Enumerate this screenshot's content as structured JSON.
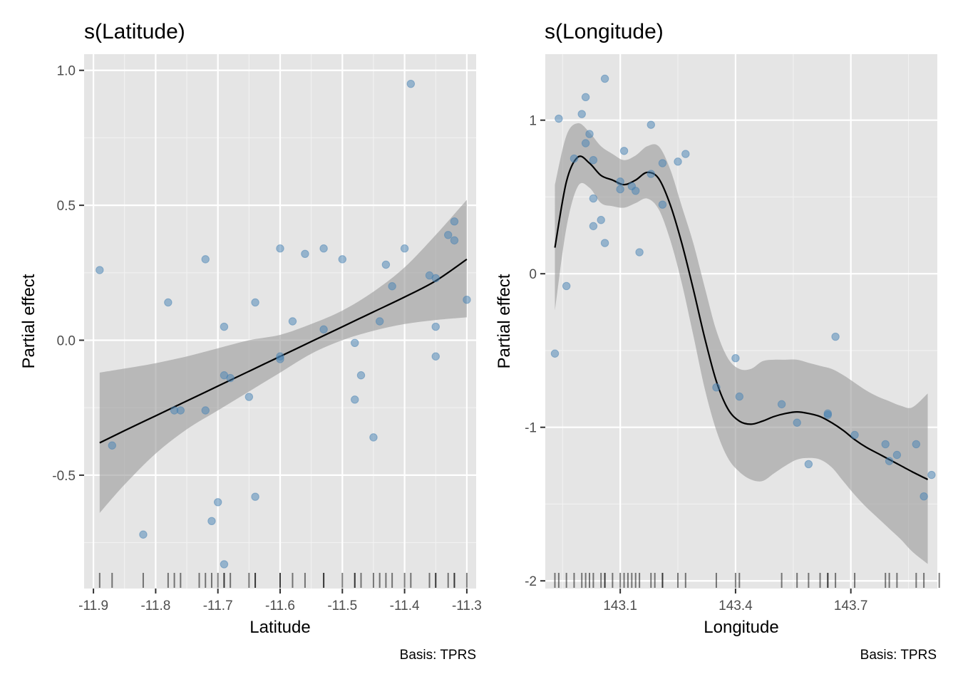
{
  "colors": {
    "panel": "#e5e5e5",
    "points": "#4682b4",
    "band": "#999999",
    "fit": "#000000"
  },
  "chart_data": [
    {
      "type": "scatter",
      "title": "s(Latitude)",
      "xlabel": "Latitude",
      "ylabel": "Partial effect",
      "caption": "Basis: TPRS",
      "xlim": [
        -11.915,
        -11.285
      ],
      "ylim": [
        -0.92,
        1.06
      ],
      "xticks": [
        -11.9,
        -11.8,
        -11.7,
        -11.6,
        -11.5,
        -11.4,
        -11.3
      ],
      "xtick_labels": [
        "-11.9",
        "-11.8",
        "-11.7",
        "-11.6",
        "-11.5",
        "-11.4",
        "-11.3"
      ],
      "yticks": [
        1.0,
        0.5,
        0.0,
        -0.5
      ],
      "ytick_labels": [
        "1.0",
        "0.5",
        "0.0",
        "-0.5"
      ],
      "grid": true,
      "smooth": {
        "x": [
          -11.89,
          -11.85,
          -11.8,
          -11.75,
          -11.7,
          -11.65,
          -11.6,
          -11.55,
          -11.5,
          -11.45,
          -11.4,
          -11.35,
          -11.3
        ],
        "fit": [
          -0.38,
          -0.335,
          -0.28,
          -0.225,
          -0.17,
          -0.115,
          -0.06,
          -0.005,
          0.05,
          0.105,
          0.16,
          0.22,
          0.3
        ],
        "lower": [
          -0.64,
          -0.535,
          -0.42,
          -0.33,
          -0.26,
          -0.19,
          -0.12,
          -0.05,
          0.0,
          0.035,
          0.06,
          0.075,
          0.085
        ],
        "upper": [
          -0.12,
          -0.105,
          -0.085,
          -0.06,
          -0.03,
          0.0,
          0.02,
          0.06,
          0.11,
          0.18,
          0.27,
          0.39,
          0.52
        ]
      },
      "points": {
        "x": [
          -11.89,
          -11.87,
          -11.82,
          -11.78,
          -11.77,
          -11.76,
          -11.72,
          -11.72,
          -11.71,
          -11.7,
          -11.69,
          -11.69,
          -11.69,
          -11.68,
          -11.65,
          -11.64,
          -11.64,
          -11.6,
          -11.6,
          -11.6,
          -11.58,
          -11.56,
          -11.53,
          -11.53,
          -11.5,
          -11.48,
          -11.48,
          -11.47,
          -11.45,
          -11.44,
          -11.43,
          -11.42,
          -11.4,
          -11.39,
          -11.36,
          -11.35,
          -11.35,
          -11.35,
          -11.33,
          -11.32,
          -11.32,
          -11.3
        ],
        "y": [
          0.26,
          -0.39,
          -0.72,
          0.14,
          -0.26,
          -0.26,
          0.3,
          -0.26,
          -0.67,
          -0.6,
          0.05,
          -0.13,
          -0.83,
          -0.14,
          -0.21,
          0.14,
          -0.58,
          0.34,
          -0.06,
          -0.07,
          0.07,
          0.32,
          0.34,
          0.04,
          0.3,
          -0.01,
          -0.22,
          -0.13,
          -0.36,
          0.07,
          0.28,
          0.2,
          0.34,
          0.95,
          0.24,
          0.23,
          0.05,
          -0.06,
          0.39,
          0.44,
          0.37,
          0.15
        ]
      },
      "rug": [
        -11.89,
        -11.87,
        -11.82,
        -11.78,
        -11.77,
        -11.76,
        -11.73,
        -11.72,
        -11.71,
        -11.7,
        -11.69,
        -11.69,
        -11.68,
        -11.65,
        -11.64,
        -11.64,
        -11.6,
        -11.6,
        -11.58,
        -11.56,
        -11.53,
        -11.53,
        -11.5,
        -11.48,
        -11.48,
        -11.47,
        -11.45,
        -11.44,
        -11.43,
        -11.42,
        -11.4,
        -11.39,
        -11.36,
        -11.35,
        -11.35,
        -11.33,
        -11.32,
        -11.32,
        -11.3
      ]
    },
    {
      "type": "scatter",
      "title": "s(Longitude)",
      "xlabel": "Longitude",
      "ylabel": "Partial effect",
      "caption": "Basis: TPRS",
      "xlim": [
        142.905,
        143.925
      ],
      "ylim": [
        -2.05,
        1.43
      ],
      "xticks": [
        143.1,
        143.4,
        143.7
      ],
      "xtick_labels": [
        "143.1",
        "143.4",
        "143.7"
      ],
      "yticks": [
        1,
        0,
        -1,
        -2
      ],
      "ytick_labels": [
        "1",
        "0",
        "-1",
        "-2"
      ],
      "grid": true,
      "smooth": {
        "x": [
          142.93,
          142.96,
          142.99,
          143.02,
          143.05,
          143.08,
          143.11,
          143.14,
          143.17,
          143.2,
          143.23,
          143.26,
          143.29,
          143.32,
          143.35,
          143.38,
          143.41,
          143.44,
          143.47,
          143.5,
          143.53,
          143.56,
          143.59,
          143.62,
          143.65,
          143.68,
          143.71,
          143.74,
          143.77,
          143.8,
          143.83,
          143.86,
          143.9
        ],
        "fit": [
          0.17,
          0.6,
          0.76,
          0.72,
          0.64,
          0.61,
          0.58,
          0.61,
          0.66,
          0.62,
          0.45,
          0.2,
          -0.1,
          -0.42,
          -0.7,
          -0.88,
          -0.96,
          -0.98,
          -0.96,
          -0.93,
          -0.91,
          -0.9,
          -0.91,
          -0.93,
          -0.97,
          -1.02,
          -1.08,
          -1.13,
          -1.17,
          -1.21,
          -1.25,
          -1.29,
          -1.34
        ],
        "lower": [
          -0.24,
          0.3,
          0.57,
          0.56,
          0.46,
          0.44,
          0.43,
          0.46,
          0.49,
          0.42,
          0.22,
          -0.06,
          -0.4,
          -0.75,
          -1.02,
          -1.2,
          -1.29,
          -1.34,
          -1.35,
          -1.3,
          -1.25,
          -1.21,
          -1.2,
          -1.21,
          -1.26,
          -1.35,
          -1.44,
          -1.52,
          -1.59,
          -1.66,
          -1.73,
          -1.81,
          -1.89
        ],
        "upper": [
          0.58,
          0.9,
          0.98,
          0.92,
          0.83,
          0.78,
          0.74,
          0.77,
          0.83,
          0.83,
          0.68,
          0.44,
          0.2,
          -0.09,
          -0.37,
          -0.55,
          -0.62,
          -0.62,
          -0.57,
          -0.56,
          -0.56,
          -0.56,
          -0.58,
          -0.6,
          -0.62,
          -0.66,
          -0.71,
          -0.76,
          -0.8,
          -0.83,
          -0.86,
          -0.87,
          -0.78
        ]
      },
      "points": {
        "x": [
          142.93,
          142.94,
          142.96,
          142.98,
          143.0,
          143.01,
          143.01,
          143.02,
          143.03,
          143.03,
          143.03,
          143.05,
          143.06,
          143.06,
          143.1,
          143.1,
          143.11,
          143.13,
          143.14,
          143.15,
          143.18,
          143.18,
          143.21,
          143.21,
          143.25,
          143.27,
          143.35,
          143.4,
          143.41,
          143.52,
          143.56,
          143.59,
          143.64,
          143.64,
          143.66,
          143.71,
          143.79,
          143.8,
          143.82,
          143.87,
          143.89,
          143.91
        ],
        "y": [
          -0.52,
          1.01,
          -0.08,
          0.75,
          1.04,
          1.15,
          0.85,
          0.91,
          0.74,
          0.49,
          0.31,
          0.35,
          1.27,
          0.2,
          0.6,
          0.55,
          0.8,
          0.57,
          0.54,
          0.14,
          0.97,
          0.65,
          0.72,
          0.45,
          0.73,
          0.78,
          -0.74,
          -0.55,
          -0.8,
          -0.85,
          -0.97,
          -1.24,
          -0.92,
          -0.91,
          -0.41,
          -1.05,
          -1.11,
          -1.22,
          -1.18,
          -1.11,
          -1.45,
          -1.31
        ]
      },
      "rug": [
        142.93,
        142.94,
        142.96,
        142.98,
        143.0,
        143.01,
        143.02,
        143.03,
        143.05,
        143.06,
        143.06,
        143.08,
        143.1,
        143.11,
        143.12,
        143.13,
        143.14,
        143.15,
        143.18,
        143.19,
        143.21,
        143.21,
        143.25,
        143.27,
        143.35,
        143.4,
        143.41,
        143.52,
        143.56,
        143.59,
        143.62,
        143.64,
        143.64,
        143.66,
        143.71,
        143.79,
        143.8,
        143.82,
        143.87,
        143.89,
        143.93
      ]
    }
  ]
}
